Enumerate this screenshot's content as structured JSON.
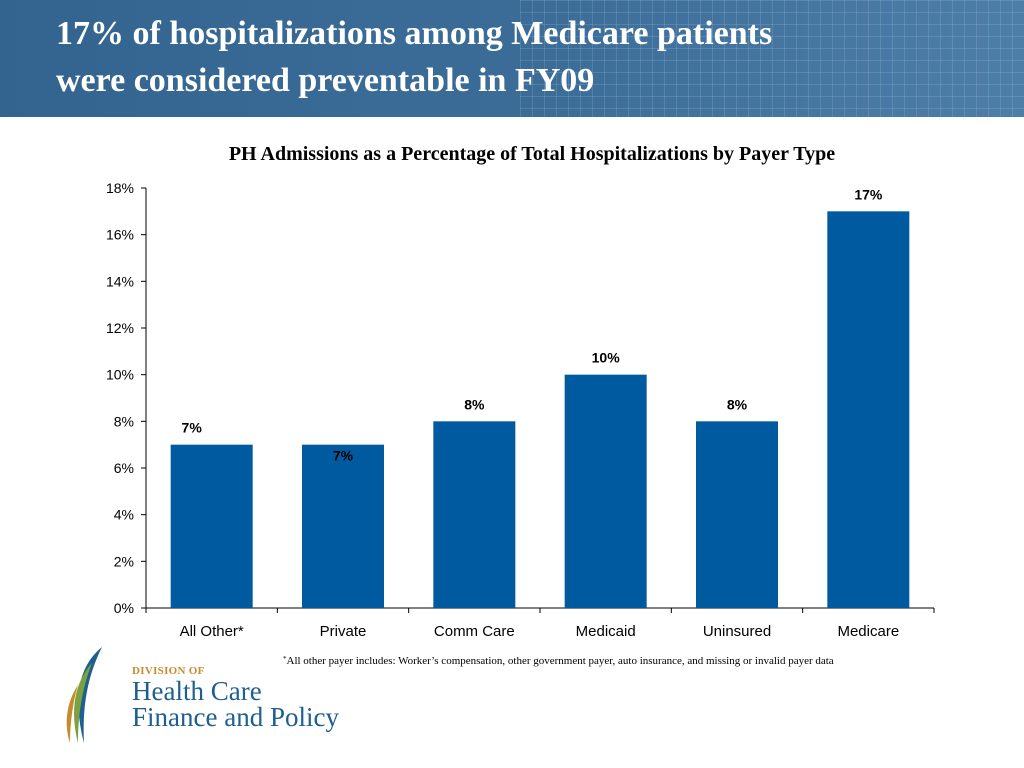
{
  "header": {
    "title_line1": "17% of hospitalizations among Medicare patients",
    "title_line2": "were considered preventable in FY09"
  },
  "chart_data": {
    "type": "bar",
    "title": "PH Admissions as a Percentage of Total Hospitalizations by Payer Type",
    "categories": [
      "All Other*",
      "Private",
      "Comm Care",
      "Medicaid",
      "Uninsured",
      "Medicare"
    ],
    "values": [
      7,
      7,
      8,
      10,
      8,
      17
    ],
    "data_labels": [
      "7%",
      "7%",
      "8%",
      "10%",
      "8%",
      "17%"
    ],
    "ylim": [
      0,
      18
    ],
    "yticks": [
      0,
      2,
      4,
      6,
      8,
      10,
      12,
      14,
      16,
      18
    ],
    "ytick_labels": [
      "0%",
      "2%",
      "4%",
      "6%",
      "8%",
      "10%",
      "12%",
      "14%",
      "16%",
      "18%"
    ],
    "xlabel": "",
    "ylabel": "",
    "grid": false,
    "bar_color": "#005aa0"
  },
  "footnote": {
    "mark": "*",
    "text": "All other payer includes: Worker’s compensation, other government payer, auto insurance, and missing or invalid payer data"
  },
  "logo": {
    "division": "DIVISION OF",
    "line1": "Health Care",
    "line2": "Finance and Policy"
  },
  "colors": {
    "header_bg": "#3a6b97",
    "bar": "#005aa0",
    "logo_blue": "#1d5f8f",
    "logo_orange": "#c98a2e",
    "logo_green": "#7aa23f"
  }
}
